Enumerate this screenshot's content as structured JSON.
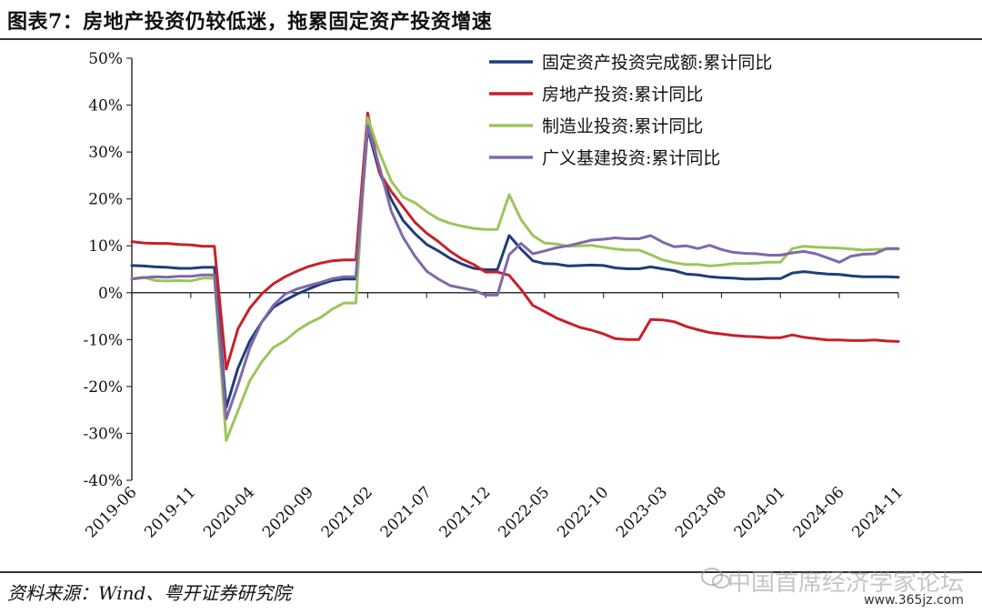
{
  "header": {
    "title": "图表7：房地产投资仍较低迷，拖累固定资产投资增速"
  },
  "footer": {
    "source": "资料来源：Wind、粤开证券研究院"
  },
  "watermark": {
    "text": "中国首席经济学家论坛",
    "url": "www.365jz.com",
    "icon": "wechat-icon"
  },
  "chart_data": {
    "type": "line",
    "title": "",
    "xlabel": "",
    "ylabel": "",
    "ylim": [
      -40,
      50
    ],
    "y_ticks": [
      -40,
      -30,
      -20,
      -10,
      0,
      10,
      20,
      30,
      40,
      50
    ],
    "y_tick_labels": [
      "-40%",
      "-30%",
      "-20%",
      "-10%",
      "0%",
      "10%",
      "20%",
      "30%",
      "40%",
      "50%"
    ],
    "x_tick_labels": [
      "2019-06",
      "2019-11",
      "2020-04",
      "2020-09",
      "2021-02",
      "2021-07",
      "2021-12",
      "2022-05",
      "2022-10",
      "2023-03",
      "2023-08",
      "2024-01",
      "2024-06",
      "2024-11"
    ],
    "x_period": "2019-06 to 2024-11 (monthly)",
    "legend_position": "top-right",
    "grid": false,
    "series": [
      {
        "name": "固定资产投资完成额:累计同比",
        "color": "#1f3d7a",
        "points": [
          [
            "2019-06",
            5.8
          ],
          [
            "2019-07",
            5.7
          ],
          [
            "2019-08",
            5.5
          ],
          [
            "2019-09",
            5.4
          ],
          [
            "2019-10",
            5.2
          ],
          [
            "2019-11",
            5.2
          ],
          [
            "2019-12",
            5.4
          ],
          [
            "2020-01",
            5.4
          ],
          [
            "2020-02",
            -24.5
          ],
          [
            "2020-03",
            -16.1
          ],
          [
            "2020-04",
            -10.3
          ],
          [
            "2020-05",
            -6.3
          ],
          [
            "2020-06",
            -3.1
          ],
          [
            "2020-07",
            -1.6
          ],
          [
            "2020-08",
            -0.3
          ],
          [
            "2020-09",
            0.8
          ],
          [
            "2020-10",
            1.8
          ],
          [
            "2020-11",
            2.6
          ],
          [
            "2020-12",
            2.9
          ],
          [
            "2021-01",
            2.9
          ],
          [
            "2021-02",
            35.0
          ],
          [
            "2021-03",
            25.6
          ],
          [
            "2021-04",
            19.9
          ],
          [
            "2021-05",
            15.4
          ],
          [
            "2021-06",
            12.6
          ],
          [
            "2021-07",
            10.3
          ],
          [
            "2021-08",
            8.9
          ],
          [
            "2021-09",
            7.3
          ],
          [
            "2021-10",
            6.1
          ],
          [
            "2021-11",
            5.2
          ],
          [
            "2021-12",
            4.9
          ],
          [
            "2022-01",
            4.9
          ],
          [
            "2022-02",
            12.2
          ],
          [
            "2022-03",
            9.3
          ],
          [
            "2022-04",
            6.8
          ],
          [
            "2022-05",
            6.2
          ],
          [
            "2022-06",
            6.1
          ],
          [
            "2022-07",
            5.7
          ],
          [
            "2022-08",
            5.8
          ],
          [
            "2022-09",
            5.9
          ],
          [
            "2022-10",
            5.8
          ],
          [
            "2022-11",
            5.3
          ],
          [
            "2022-12",
            5.1
          ],
          [
            "2023-01",
            5.1
          ],
          [
            "2023-02",
            5.5
          ],
          [
            "2023-03",
            5.1
          ],
          [
            "2023-04",
            4.7
          ],
          [
            "2023-05",
            4.0
          ],
          [
            "2023-06",
            3.8
          ],
          [
            "2023-07",
            3.4
          ],
          [
            "2023-08",
            3.2
          ],
          [
            "2023-09",
            3.1
          ],
          [
            "2023-10",
            2.9
          ],
          [
            "2023-11",
            2.9
          ],
          [
            "2023-12",
            3.0
          ],
          [
            "2024-01",
            3.0
          ],
          [
            "2024-02",
            4.2
          ],
          [
            "2024-03",
            4.5
          ],
          [
            "2024-04",
            4.2
          ],
          [
            "2024-05",
            4.0
          ],
          [
            "2024-06",
            3.9
          ],
          [
            "2024-07",
            3.6
          ],
          [
            "2024-08",
            3.4
          ],
          [
            "2024-09",
            3.4
          ],
          [
            "2024-10",
            3.4
          ],
          [
            "2024-11",
            3.3
          ]
        ]
      },
      {
        "name": "房地产投资:累计同比",
        "color": "#c8202a",
        "points": [
          [
            "2019-06",
            10.9
          ],
          [
            "2019-07",
            10.6
          ],
          [
            "2019-08",
            10.5
          ],
          [
            "2019-09",
            10.5
          ],
          [
            "2019-10",
            10.3
          ],
          [
            "2019-11",
            10.2
          ],
          [
            "2019-12",
            9.9
          ],
          [
            "2020-01",
            9.9
          ],
          [
            "2020-02",
            -16.3
          ],
          [
            "2020-03",
            -7.7
          ],
          [
            "2020-04",
            -3.3
          ],
          [
            "2020-05",
            -0.3
          ],
          [
            "2020-06",
            1.9
          ],
          [
            "2020-07",
            3.4
          ],
          [
            "2020-08",
            4.6
          ],
          [
            "2020-09",
            5.6
          ],
          [
            "2020-10",
            6.3
          ],
          [
            "2020-11",
            6.8
          ],
          [
            "2020-12",
            7.0
          ],
          [
            "2021-01",
            7.0
          ],
          [
            "2021-02",
            38.3
          ],
          [
            "2021-03",
            25.6
          ],
          [
            "2021-04",
            21.6
          ],
          [
            "2021-05",
            18.3
          ],
          [
            "2021-06",
            15.0
          ],
          [
            "2021-07",
            12.7
          ],
          [
            "2021-08",
            10.9
          ],
          [
            "2021-09",
            8.8
          ],
          [
            "2021-10",
            7.2
          ],
          [
            "2021-11",
            6.0
          ],
          [
            "2021-12",
            4.4
          ],
          [
            "2022-01",
            4.4
          ],
          [
            "2022-02",
            3.7
          ],
          [
            "2022-03",
            0.7
          ],
          [
            "2022-04",
            -2.7
          ],
          [
            "2022-05",
            -4.0
          ],
          [
            "2022-06",
            -5.4
          ],
          [
            "2022-07",
            -6.4
          ],
          [
            "2022-08",
            -7.4
          ],
          [
            "2022-09",
            -8.0
          ],
          [
            "2022-10",
            -8.8
          ],
          [
            "2022-11",
            -9.8
          ],
          [
            "2022-12",
            -10.0
          ],
          [
            "2023-01",
            -10.0
          ],
          [
            "2023-02",
            -5.7
          ],
          [
            "2023-03",
            -5.8
          ],
          [
            "2023-04",
            -6.2
          ],
          [
            "2023-05",
            -7.2
          ],
          [
            "2023-06",
            -7.9
          ],
          [
            "2023-07",
            -8.5
          ],
          [
            "2023-08",
            -8.8
          ],
          [
            "2023-09",
            -9.1
          ],
          [
            "2023-10",
            -9.3
          ],
          [
            "2023-11",
            -9.4
          ],
          [
            "2023-12",
            -9.6
          ],
          [
            "2024-01",
            -9.6
          ],
          [
            "2024-02",
            -9.0
          ],
          [
            "2024-03",
            -9.5
          ],
          [
            "2024-04",
            -9.8
          ],
          [
            "2024-05",
            -10.1
          ],
          [
            "2024-06",
            -10.1
          ],
          [
            "2024-07",
            -10.2
          ],
          [
            "2024-08",
            -10.2
          ],
          [
            "2024-09",
            -10.1
          ],
          [
            "2024-10",
            -10.3
          ],
          [
            "2024-11",
            -10.4
          ]
        ]
      },
      {
        "name": "制造业投资:累计同比",
        "color": "#9cc55b",
        "points": [
          [
            "2019-06",
            3.0
          ],
          [
            "2019-07",
            3.3
          ],
          [
            "2019-08",
            2.6
          ],
          [
            "2019-09",
            2.5
          ],
          [
            "2019-10",
            2.6
          ],
          [
            "2019-11",
            2.5
          ],
          [
            "2019-12",
            3.1
          ],
          [
            "2020-01",
            3.1
          ],
          [
            "2020-02",
            -31.5
          ],
          [
            "2020-03",
            -25.2
          ],
          [
            "2020-04",
            -18.8
          ],
          [
            "2020-05",
            -14.8
          ],
          [
            "2020-06",
            -11.7
          ],
          [
            "2020-07",
            -10.2
          ],
          [
            "2020-08",
            -8.1
          ],
          [
            "2020-09",
            -6.5
          ],
          [
            "2020-10",
            -5.3
          ],
          [
            "2020-11",
            -3.5
          ],
          [
            "2020-12",
            -2.2
          ],
          [
            "2021-01",
            -2.2
          ],
          [
            "2021-02",
            37.3
          ],
          [
            "2021-03",
            29.8
          ],
          [
            "2021-04",
            23.8
          ],
          [
            "2021-05",
            20.4
          ],
          [
            "2021-06",
            19.2
          ],
          [
            "2021-07",
            17.3
          ],
          [
            "2021-08",
            15.7
          ],
          [
            "2021-09",
            14.8
          ],
          [
            "2021-10",
            14.2
          ],
          [
            "2021-11",
            13.7
          ],
          [
            "2021-12",
            13.5
          ],
          [
            "2022-01",
            13.5
          ],
          [
            "2022-02",
            20.9
          ],
          [
            "2022-03",
            15.6
          ],
          [
            "2022-04",
            12.2
          ],
          [
            "2022-05",
            10.6
          ],
          [
            "2022-06",
            10.4
          ],
          [
            "2022-07",
            9.9
          ],
          [
            "2022-08",
            10.0
          ],
          [
            "2022-09",
            10.1
          ],
          [
            "2022-10",
            9.7
          ],
          [
            "2022-11",
            9.3
          ],
          [
            "2022-12",
            9.1
          ],
          [
            "2023-01",
            9.1
          ],
          [
            "2023-02",
            8.1
          ],
          [
            "2023-03",
            7.0
          ],
          [
            "2023-04",
            6.4
          ],
          [
            "2023-05",
            6.0
          ],
          [
            "2023-06",
            6.0
          ],
          [
            "2023-07",
            5.7
          ],
          [
            "2023-08",
            5.9
          ],
          [
            "2023-09",
            6.2
          ],
          [
            "2023-10",
            6.2
          ],
          [
            "2023-11",
            6.3
          ],
          [
            "2023-12",
            6.5
          ],
          [
            "2024-01",
            6.5
          ],
          [
            "2024-02",
            9.4
          ],
          [
            "2024-03",
            9.9
          ],
          [
            "2024-04",
            9.7
          ],
          [
            "2024-05",
            9.6
          ],
          [
            "2024-06",
            9.5
          ],
          [
            "2024-07",
            9.3
          ],
          [
            "2024-08",
            9.1
          ],
          [
            "2024-09",
            9.2
          ],
          [
            "2024-10",
            9.3
          ],
          [
            "2024-11",
            9.3
          ]
        ]
      },
      {
        "name": "广义基建投资:累计同比",
        "color": "#7f69a9",
        "points": [
          [
            "2019-06",
            2.9
          ],
          [
            "2019-07",
            3.2
          ],
          [
            "2019-08",
            3.4
          ],
          [
            "2019-09",
            3.3
          ],
          [
            "2019-10",
            3.5
          ],
          [
            "2019-11",
            3.5
          ],
          [
            "2019-12",
            3.8
          ],
          [
            "2020-01",
            3.8
          ],
          [
            "2020-02",
            -26.9
          ],
          [
            "2020-03",
            -19.7
          ],
          [
            "2020-04",
            -11.8
          ],
          [
            "2020-05",
            -6.3
          ],
          [
            "2020-06",
            -2.7
          ],
          [
            "2020-07",
            -0.3
          ],
          [
            "2020-08",
            0.8
          ],
          [
            "2020-09",
            1.5
          ],
          [
            "2020-10",
            2.2
          ],
          [
            "2020-11",
            3.0
          ],
          [
            "2020-12",
            3.4
          ],
          [
            "2021-01",
            3.4
          ],
          [
            "2021-02",
            35.6
          ],
          [
            "2021-03",
            26.8
          ],
          [
            "2021-04",
            17.4
          ],
          [
            "2021-05",
            11.8
          ],
          [
            "2021-06",
            7.8
          ],
          [
            "2021-07",
            4.6
          ],
          [
            "2021-08",
            2.9
          ],
          [
            "2021-09",
            1.5
          ],
          [
            "2021-10",
            1.0
          ],
          [
            "2021-11",
            0.5
          ],
          [
            "2021-12",
            -0.5
          ],
          [
            "2022-01",
            -0.5
          ],
          [
            "2022-02",
            8.1
          ],
          [
            "2022-03",
            10.5
          ],
          [
            "2022-04",
            8.3
          ],
          [
            "2022-05",
            8.9
          ],
          [
            "2022-06",
            9.6
          ],
          [
            "2022-07",
            10.0
          ],
          [
            "2022-08",
            10.6
          ],
          [
            "2022-09",
            11.2
          ],
          [
            "2022-10",
            11.4
          ],
          [
            "2022-11",
            11.7
          ],
          [
            "2022-12",
            11.5
          ],
          [
            "2023-01",
            11.5
          ],
          [
            "2023-02",
            12.2
          ],
          [
            "2023-03",
            10.8
          ],
          [
            "2023-04",
            9.8
          ],
          [
            "2023-05",
            10.0
          ],
          [
            "2023-06",
            9.4
          ],
          [
            "2023-07",
            10.1
          ],
          [
            "2023-08",
            9.2
          ],
          [
            "2023-09",
            8.6
          ],
          [
            "2023-10",
            8.4
          ],
          [
            "2023-11",
            8.3
          ],
          [
            "2023-12",
            8.0
          ],
          [
            "2024-01",
            8.0
          ],
          [
            "2024-02",
            8.5
          ],
          [
            "2024-03",
            8.8
          ],
          [
            "2024-04",
            8.3
          ],
          [
            "2024-05",
            7.4
          ],
          [
            "2024-06",
            6.5
          ],
          [
            "2024-07",
            7.8
          ],
          [
            "2024-08",
            8.2
          ],
          [
            "2024-09",
            8.3
          ],
          [
            "2024-10",
            9.4
          ],
          [
            "2024-11",
            9.4
          ]
        ]
      }
    ]
  }
}
